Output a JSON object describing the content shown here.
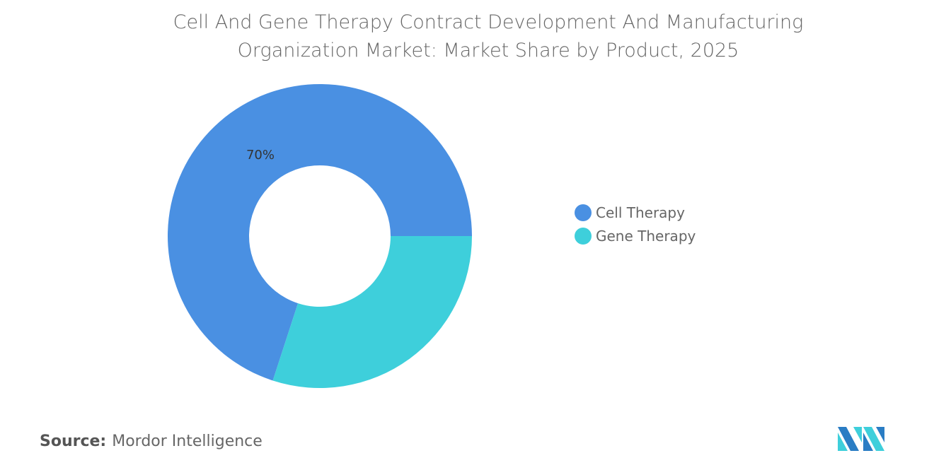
{
  "chart_data": {
    "type": "pie",
    "variant": "donut",
    "title": "Cell And Gene Therapy Contract Development And Manufacturing Organization Market: Market Share by Product, 2025",
    "title_lines": [
      "Cell And Gene Therapy Contract Development And Manufacturing",
      "Organization Market: Market Share by Product, 2025"
    ],
    "categories": [
      "Cell Therapy",
      "Gene Therapy"
    ],
    "values": [
      70,
      30
    ],
    "data_labels": [
      "70%",
      ""
    ],
    "colors": [
      "#4a90e2",
      "#3ecfdb"
    ],
    "legend_position": "right"
  },
  "source": {
    "label": "Source:",
    "value": "Mordor Intelligence"
  },
  "logo": {
    "text": "Mordor Intelligence",
    "colors": [
      "#2a7dc4",
      "#3ecfdb"
    ]
  }
}
